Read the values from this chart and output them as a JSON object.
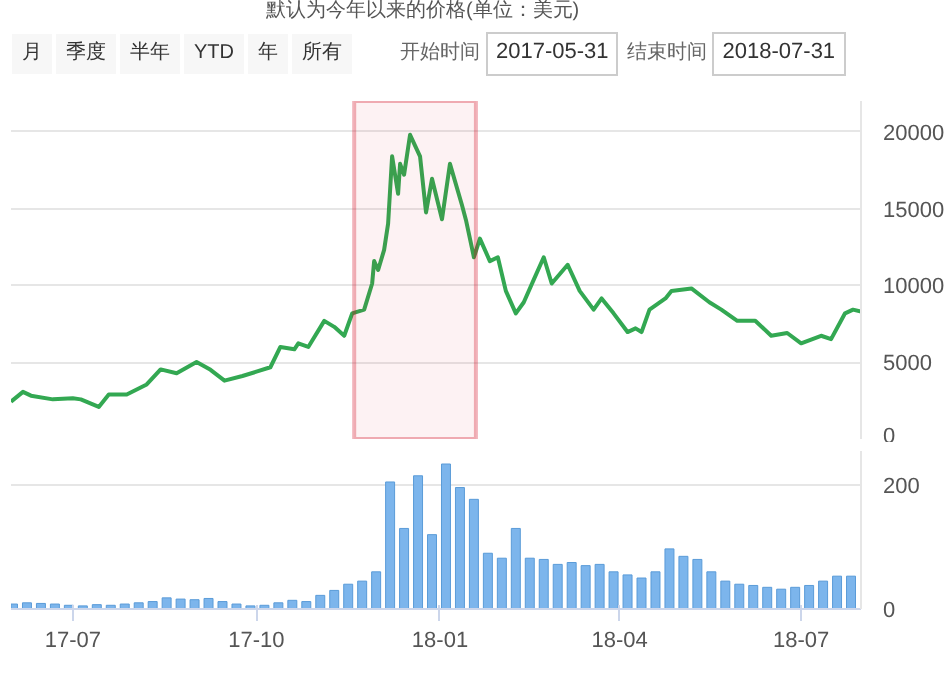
{
  "chart_data": [
    {
      "type": "line",
      "title": "默认为今年以来的价格(单位：美元)",
      "annotations": [
        "月",
        "季度",
        "半年",
        "YTD",
        "年",
        "所有",
        "开始时间",
        "2017-05-31",
        "结束时间",
        "2018-07-31"
      ],
      "x": [
        "2017-05-31",
        "2017-06-06",
        "2017-06-10",
        "2017-06-21",
        "2017-07-01",
        "2017-07-05",
        "2017-07-14",
        "2017-07-19",
        "2017-07-28",
        "2017-08-07",
        "2017-08-14",
        "2017-08-22",
        "2017-09-01",
        "2017-09-08",
        "2017-09-15",
        "2017-09-24",
        "2017-10-01",
        "2017-10-08",
        "2017-10-13",
        "2017-10-20",
        "2017-10-22",
        "2017-10-27",
        "2017-11-04",
        "2017-11-09",
        "2017-11-14",
        "2017-11-18",
        "2017-11-24",
        "2017-11-28",
        "2017-11-29",
        "2017-12-01",
        "2017-12-04",
        "2017-12-06",
        "2017-12-08",
        "2017-12-11",
        "2017-12-12",
        "2017-12-14",
        "2017-12-17",
        "2017-12-22",
        "2017-12-25",
        "2017-12-28",
        "2018-01-02",
        "2018-01-06",
        "2018-01-12",
        "2018-01-14",
        "2018-01-18",
        "2018-01-21",
        "2018-01-26",
        "2018-01-30",
        "2018-02-03",
        "2018-02-08",
        "2018-02-12",
        "2018-02-17",
        "2018-02-22",
        "2018-02-26",
        "2018-03-06",
        "2018-03-12",
        "2018-03-19",
        "2018-03-23",
        "2018-03-29",
        "2018-04-05",
        "2018-04-09",
        "2018-04-12",
        "2018-04-16",
        "2018-04-24",
        "2018-04-27",
        "2018-05-07",
        "2018-05-16",
        "2018-05-22",
        "2018-05-30",
        "2018-06-08",
        "2018-06-16",
        "2018-06-24",
        "2018-07-01",
        "2018-07-11",
        "2018-07-16",
        "2018-07-23",
        "2018-07-27",
        "2018-07-31"
      ],
      "series": [
        {
          "color": "#33a852",
          "values": [
            2430,
            3070,
            2820,
            2580,
            2650,
            2580,
            2090,
            2900,
            2900,
            3550,
            4530,
            4280,
            5010,
            4500,
            3800,
            4100,
            4380,
            4670,
            5990,
            5840,
            6230,
            5990,
            7690,
            7300,
            6720,
            8180,
            8420,
            10120,
            11580,
            11000,
            12310,
            14020,
            18400,
            15960,
            17910,
            17200,
            19800,
            18400,
            14750,
            16940,
            14300,
            17910,
            15230,
            14260,
            11830,
            13040,
            11580,
            11830,
            9640,
            8180,
            8900,
            10370,
            11830,
            10120,
            11340,
            9640,
            8420,
            9150,
            8180,
            6960,
            7200,
            6960,
            8420,
            9150,
            9640,
            9800,
            8900,
            8420,
            7690,
            7700,
            6720,
            6900,
            6230,
            6720,
            6500,
            8180,
            8420,
            8300
          ]
        }
      ],
      "xlim": [
        "2017-05-31",
        "2018-07-31"
      ],
      "ylim": [
        0,
        22000
      ],
      "yticks": [
        0,
        5000,
        10000,
        15000,
        20000
      ],
      "grid": "y",
      "tick_labels": "y",
      "bands": [
        {
          "axis": "x",
          "from": "2017-11-19",
          "to": "2018-01-19",
          "color": "#d0021b"
        }
      ]
    },
    {
      "type": "bar",
      "x": [
        "2017-06-01",
        "2017-06-08",
        "2017-06-15",
        "2017-06-22",
        "2017-06-29",
        "2017-07-06",
        "2017-07-13",
        "2017-07-20",
        "2017-07-27",
        "2017-08-03",
        "2017-08-10",
        "2017-08-17",
        "2017-08-24",
        "2017-08-31",
        "2017-09-07",
        "2017-09-14",
        "2017-09-21",
        "2017-09-28",
        "2017-10-05",
        "2017-10-12",
        "2017-10-19",
        "2017-10-26",
        "2017-11-02",
        "2017-11-09",
        "2017-11-16",
        "2017-11-23",
        "2017-11-30",
        "2017-12-07",
        "2017-12-14",
        "2017-12-21",
        "2017-12-28",
        "2018-01-04",
        "2018-01-11",
        "2018-01-18",
        "2018-01-25",
        "2018-02-01",
        "2018-02-08",
        "2018-02-15",
        "2018-02-22",
        "2018-03-01",
        "2018-03-08",
        "2018-03-15",
        "2018-03-22",
        "2018-03-29",
        "2018-04-05",
        "2018-04-12",
        "2018-04-19",
        "2018-04-26",
        "2018-05-03",
        "2018-05-10",
        "2018-05-17",
        "2018-05-24",
        "2018-05-31",
        "2018-06-07",
        "2018-06-14",
        "2018-06-21",
        "2018-06-28",
        "2018-07-05",
        "2018-07-12",
        "2018-07-19",
        "2018-07-26"
      ],
      "series": [
        {
          "color": "#7cb5ec",
          "values": [
            8,
            10,
            9,
            8,
            6,
            5,
            7,
            6,
            8,
            10,
            12,
            18,
            16,
            15,
            17,
            12,
            8,
            5,
            6,
            10,
            14,
            12,
            22,
            30,
            40,
            45,
            60,
            205,
            130,
            215,
            120,
            234,
            196,
            177,
            90,
            82,
            130,
            82,
            80,
            72,
            75,
            70,
            72,
            60,
            55,
            50,
            60,
            97,
            85,
            80,
            60,
            45,
            40,
            38,
            35,
            32,
            35,
            38,
            45,
            53,
            53
          ]
        }
      ],
      "xlim": [
        "2017-05-31",
        "2018-07-31"
      ],
      "ylim": [
        0,
        255
      ],
      "yticks": [
        0,
        200
      ],
      "xticks": [
        {
          "value": "2017-07-01",
          "label": "17-07"
        },
        {
          "value": "2017-10-01",
          "label": "17-10"
        },
        {
          "value": "2018-01-01",
          "label": "18-01"
        },
        {
          "value": "2018-04-01",
          "label": "18-04"
        },
        {
          "value": "2018-07-01",
          "label": "18-07"
        }
      ],
      "grid": "y"
    }
  ]
}
